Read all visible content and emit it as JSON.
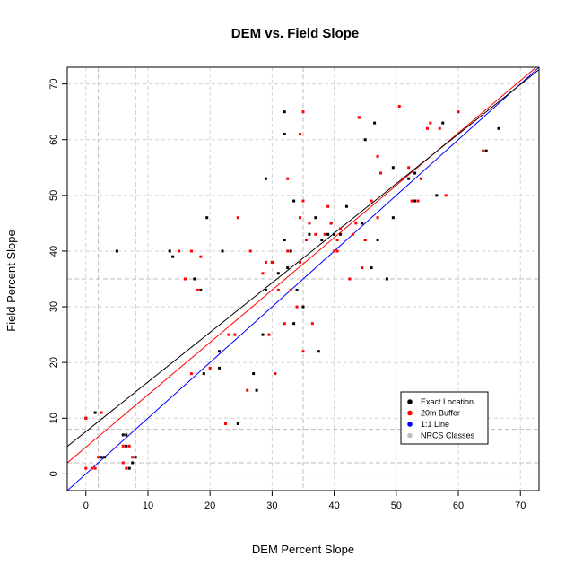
{
  "chart_data": {
    "type": "scatter",
    "title": "DEM vs. Field Slope",
    "xlabel": "DEM Percent Slope",
    "ylabel": "Field Percent Slope",
    "xlim": [
      -3,
      73
    ],
    "ylim": [
      -3,
      73
    ],
    "xticks": [
      0,
      10,
      20,
      30,
      40,
      50,
      60,
      70
    ],
    "yticks": [
      0,
      10,
      20,
      30,
      40,
      50,
      60,
      70
    ],
    "grid": true,
    "legend_position": "bottom-right",
    "nrcs_class_lines": [
      2,
      8,
      35
    ],
    "legend": [
      {
        "label": "Exact Location",
        "color": "#000000"
      },
      {
        "label": "20m Buffer",
        "color": "#ff0000"
      },
      {
        "label": "1:1 Line",
        "color": "#0000ff"
      },
      {
        "label": "NRCS Classes",
        "color": "#bebebe"
      }
    ],
    "series": [
      {
        "name": "Exact Location",
        "color": "#000000",
        "points": [
          [
            0,
            10
          ],
          [
            1.5,
            11
          ],
          [
            2.5,
            3
          ],
          [
            3,
            3
          ],
          [
            5,
            40
          ],
          [
            6,
            7
          ],
          [
            6.5,
            7
          ],
          [
            6.5,
            5
          ],
          [
            7,
            1
          ],
          [
            7.5,
            2
          ],
          [
            8,
            3
          ],
          [
            13.5,
            40
          ],
          [
            14,
            39
          ],
          [
            17.5,
            35
          ],
          [
            18.5,
            33
          ],
          [
            19,
            18
          ],
          [
            19.5,
            46
          ],
          [
            21.5,
            19
          ],
          [
            21.5,
            22
          ],
          [
            22,
            40
          ],
          [
            24.5,
            9
          ],
          [
            27,
            18
          ],
          [
            27.5,
            15
          ],
          [
            28.5,
            25
          ],
          [
            29,
            33
          ],
          [
            29,
            53
          ],
          [
            30,
            38
          ],
          [
            31,
            36
          ],
          [
            32,
            65
          ],
          [
            32,
            61
          ],
          [
            32,
            42
          ],
          [
            32.5,
            37
          ],
          [
            33,
            40
          ],
          [
            33.5,
            49
          ],
          [
            33.5,
            27
          ],
          [
            34,
            33
          ],
          [
            35,
            30
          ],
          [
            36,
            43
          ],
          [
            37,
            46
          ],
          [
            37.5,
            22
          ],
          [
            38,
            42
          ],
          [
            39,
            43
          ],
          [
            39.5,
            45
          ],
          [
            40,
            43
          ],
          [
            41,
            43
          ],
          [
            42,
            48
          ],
          [
            44,
            64
          ],
          [
            44.5,
            45
          ],
          [
            45,
            60
          ],
          [
            45,
            42
          ],
          [
            46,
            37
          ],
          [
            46.5,
            63
          ],
          [
            47,
            42
          ],
          [
            48.5,
            35
          ],
          [
            49.5,
            46
          ],
          [
            49.5,
            55
          ],
          [
            52,
            53
          ],
          [
            53,
            49
          ],
          [
            53,
            54
          ],
          [
            54,
            53
          ],
          [
            56.5,
            50
          ],
          [
            57.5,
            63
          ],
          [
            64.5,
            58
          ],
          [
            66.5,
            62
          ]
        ]
      },
      {
        "name": "20m Buffer",
        "color": "#ff0000",
        "points": [
          [
            0,
            1
          ],
          [
            0,
            10
          ],
          [
            1,
            1
          ],
          [
            1.5,
            1
          ],
          [
            2,
            3
          ],
          [
            2.5,
            11
          ],
          [
            6,
            5
          ],
          [
            6,
            2
          ],
          [
            6.5,
            1
          ],
          [
            7,
            5
          ],
          [
            7.5,
            3
          ],
          [
            15,
            40
          ],
          [
            16,
            35
          ],
          [
            17,
            40
          ],
          [
            17,
            18
          ],
          [
            18,
            33
          ],
          [
            18.5,
            39
          ],
          [
            20,
            19
          ],
          [
            22.5,
            9
          ],
          [
            23,
            25
          ],
          [
            24,
            25
          ],
          [
            24.5,
            46
          ],
          [
            26,
            15
          ],
          [
            26.5,
            40
          ],
          [
            28.5,
            36
          ],
          [
            29,
            38
          ],
          [
            29.5,
            25
          ],
          [
            30,
            38
          ],
          [
            30.5,
            18
          ],
          [
            31,
            33
          ],
          [
            32,
            27
          ],
          [
            32.5,
            40
          ],
          [
            32.5,
            53
          ],
          [
            33,
            33
          ],
          [
            34,
            30
          ],
          [
            34.5,
            38
          ],
          [
            34.5,
            46
          ],
          [
            34.5,
            61
          ],
          [
            35,
            65
          ],
          [
            35,
            22
          ],
          [
            35,
            49
          ],
          [
            35.5,
            42
          ],
          [
            36,
            45
          ],
          [
            36.5,
            27
          ],
          [
            37,
            43
          ],
          [
            38.5,
            43
          ],
          [
            39,
            48
          ],
          [
            39.5,
            45
          ],
          [
            40,
            40
          ],
          [
            40.5,
            40
          ],
          [
            40.5,
            42
          ],
          [
            41,
            44
          ],
          [
            42.5,
            35
          ],
          [
            43,
            43
          ],
          [
            43.5,
            45
          ],
          [
            44,
            64
          ],
          [
            44.5,
            37
          ],
          [
            45,
            42
          ],
          [
            46,
            49
          ],
          [
            47,
            46
          ],
          [
            47,
            57
          ],
          [
            47.5,
            54
          ],
          [
            50.5,
            66
          ],
          [
            51,
            53
          ],
          [
            52,
            55
          ],
          [
            52.5,
            49
          ],
          [
            53.5,
            49
          ],
          [
            54,
            53
          ],
          [
            55,
            62
          ],
          [
            55.5,
            63
          ],
          [
            57,
            62
          ],
          [
            58,
            50
          ],
          [
            60,
            65
          ],
          [
            64,
            58
          ]
        ]
      }
    ],
    "lines": [
      {
        "name": "1:1 Line",
        "color": "#0000ff",
        "intercept": 0,
        "slope": 1
      },
      {
        "name": "20m Buffer fit",
        "color": "#ff0000",
        "intercept": 4.8,
        "slope": 0.94
      },
      {
        "name": "Exact Location fit",
        "color": "#000000",
        "intercept": 7.6,
        "slope": 0.89
      }
    ]
  }
}
